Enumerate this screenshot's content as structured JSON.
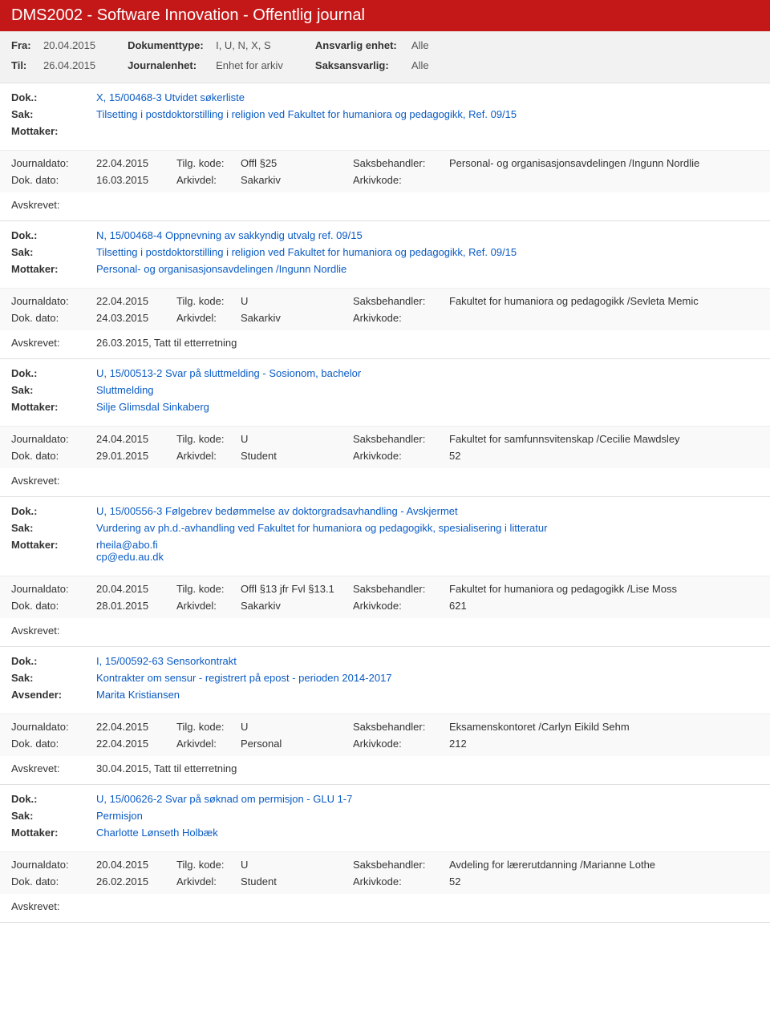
{
  "header": {
    "title": "DMS2002 - Software Innovation - Offentlig journal"
  },
  "filter": {
    "fra_label": "Fra:",
    "fra_val": "20.04.2015",
    "til_label": "Til:",
    "til_val": "26.04.2015",
    "doktype_label": "Dokumenttype:",
    "doktype_val": "I, U, N, X, S",
    "journalenhet_label": "Journalenhet:",
    "journalenhet_val": "Enhet for arkiv",
    "ansvarlig_label": "Ansvarlig enhet:",
    "ansvarlig_val": "Alle",
    "saksansvarlig_label": "Saksansvarlig:",
    "saksansvarlig_val": "Alle"
  },
  "labels": {
    "dok": "Dok.:",
    "sak": "Sak:",
    "mottaker": "Mottaker:",
    "avsender": "Avsender:",
    "journaldato": "Journaldato:",
    "dokdato": "Dok. dato:",
    "tilgkode": "Tilg. kode:",
    "arkivdel": "Arkivdel:",
    "saksbehandler": "Saksbehandler:",
    "arkivkode": "Arkivkode:",
    "avskrevet": "Avskrevet:"
  },
  "entries": [
    {
      "dok": "X, 15/00468-3 Utvidet søkerliste",
      "sak": "Tilsetting i postdoktorstilling i religion ved Fakultet for humaniora og pedagogikk, Ref. 09/15",
      "party_label": "Mottaker:",
      "party": "",
      "journaldato": "22.04.2015",
      "tilgkode": "Offl §25",
      "saksbehandler": "Personal- og organisasjonsavdelingen /Ingunn Nordlie",
      "dokdato": "16.03.2015",
      "arkivdel": "Sakarkiv",
      "arkivkode": "",
      "avskrevet": ""
    },
    {
      "dok": "N, 15/00468-4 Oppnevning av sakkyndig utvalg ref. 09/15",
      "sak": "Tilsetting i postdoktorstilling i religion ved Fakultet for humaniora og pedagogikk, Ref. 09/15",
      "party_label": "Mottaker:",
      "party": "Personal- og organisasjonsavdelingen /Ingunn Nordlie",
      "journaldato": "22.04.2015",
      "tilgkode": "U",
      "saksbehandler": "Fakultet for humaniora og pedagogikk /Sevleta Memic",
      "dokdato": "24.03.2015",
      "arkivdel": "Sakarkiv",
      "arkivkode": "",
      "avskrevet": "26.03.2015, Tatt til etterretning"
    },
    {
      "dok": "U, 15/00513-2 Svar på sluttmelding - Sosionom, bachelor",
      "sak": "Sluttmelding",
      "party_label": "Mottaker:",
      "party": "Silje Glimsdal Sinkaberg",
      "journaldato": "24.04.2015",
      "tilgkode": "U",
      "saksbehandler": "Fakultet for samfunnsvitenskap /Cecilie Mawdsley",
      "dokdato": "29.01.2015",
      "arkivdel": "Student",
      "arkivkode": "52",
      "avskrevet": ""
    },
    {
      "dok": "U, 15/00556-3 Følgebrev bedømmelse av doktorgradsavhandling - Avskjermet",
      "sak": "Vurdering av ph.d.-avhandling ved Fakultet for humaniora og pedagogikk, spesialisering i litteratur",
      "party_label": "Mottaker:",
      "party": "rheila@abo.fi\ncp@edu.au.dk",
      "journaldato": "20.04.2015",
      "tilgkode": "Offl §13 jfr Fvl §13.1",
      "saksbehandler": "Fakultet for humaniora og pedagogikk /Lise Moss",
      "dokdato": "28.01.2015",
      "arkivdel": "Sakarkiv",
      "arkivkode": "621",
      "avskrevet": ""
    },
    {
      "dok": "I, 15/00592-63 Sensorkontrakt",
      "sak": "Kontrakter om sensur - registrert på epost - perioden 2014-2017",
      "party_label": "Avsender:",
      "party": "Marita Kristiansen",
      "journaldato": "22.04.2015",
      "tilgkode": "U",
      "saksbehandler": "Eksamenskontoret /Carlyn Eikild Sehm",
      "dokdato": "22.04.2015",
      "arkivdel": "Personal",
      "arkivkode": "212",
      "avskrevet": "30.04.2015, Tatt til etterretning"
    },
    {
      "dok": "U, 15/00626-2 Svar på søknad om permisjon - GLU 1-7",
      "sak": "Permisjon",
      "party_label": "Mottaker:",
      "party": "Charlotte Lønseth Holbæk",
      "journaldato": "20.04.2015",
      "tilgkode": "U",
      "saksbehandler": "Avdeling for lærerutdanning  /Marianne Lothe",
      "dokdato": "26.02.2015",
      "arkivdel": "Student",
      "arkivkode": "52",
      "avskrevet": ""
    }
  ]
}
